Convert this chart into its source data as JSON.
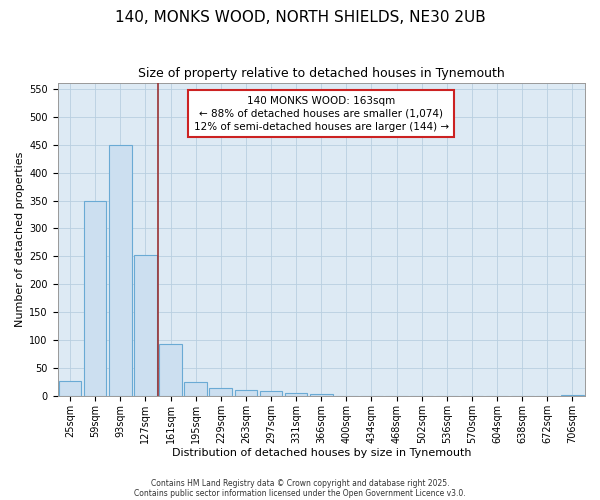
{
  "title": "140, MONKS WOOD, NORTH SHIELDS, NE30 2UB",
  "subtitle": "Size of property relative to detached houses in Tynemouth",
  "xlabel": "Distribution of detached houses by size in Tynemouth",
  "ylabel": "Number of detached properties",
  "categories": [
    "25sqm",
    "59sqm",
    "93sqm",
    "127sqm",
    "161sqm",
    "195sqm",
    "229sqm",
    "263sqm",
    "297sqm",
    "331sqm",
    "366sqm",
    "400sqm",
    "434sqm",
    "468sqm",
    "502sqm",
    "536sqm",
    "570sqm",
    "604sqm",
    "638sqm",
    "672sqm",
    "706sqm"
  ],
  "values": [
    28,
    350,
    450,
    253,
    93,
    26,
    14,
    12,
    10,
    6,
    4,
    0,
    0,
    0,
    0,
    0,
    0,
    0,
    0,
    0,
    2
  ],
  "bar_color": "#ccdff0",
  "bar_edgecolor": "#6aaad4",
  "grid_color": "#b8cfe0",
  "plot_bg_color": "#ddeaf4",
  "fig_bg_color": "#ffffff",
  "vline_x": 3.5,
  "vline_color": "#993333",
  "annotation_text": "140 MONKS WOOD: 163sqm\n← 88% of detached houses are smaller (1,074)\n12% of semi-detached houses are larger (144) →",
  "annotation_box_facecolor": "#ffffff",
  "annotation_box_edgecolor": "#cc2222",
  "ylim": [
    0,
    560
  ],
  "yticks": [
    0,
    50,
    100,
    150,
    200,
    250,
    300,
    350,
    400,
    450,
    500,
    550
  ],
  "footer1": "Contains HM Land Registry data © Crown copyright and database right 2025.",
  "footer2": "Contains public sector information licensed under the Open Government Licence v3.0.",
  "title_fontsize": 11,
  "subtitle_fontsize": 9,
  "axis_label_fontsize": 8,
  "tick_fontsize": 7,
  "annotation_fontsize": 7.5
}
